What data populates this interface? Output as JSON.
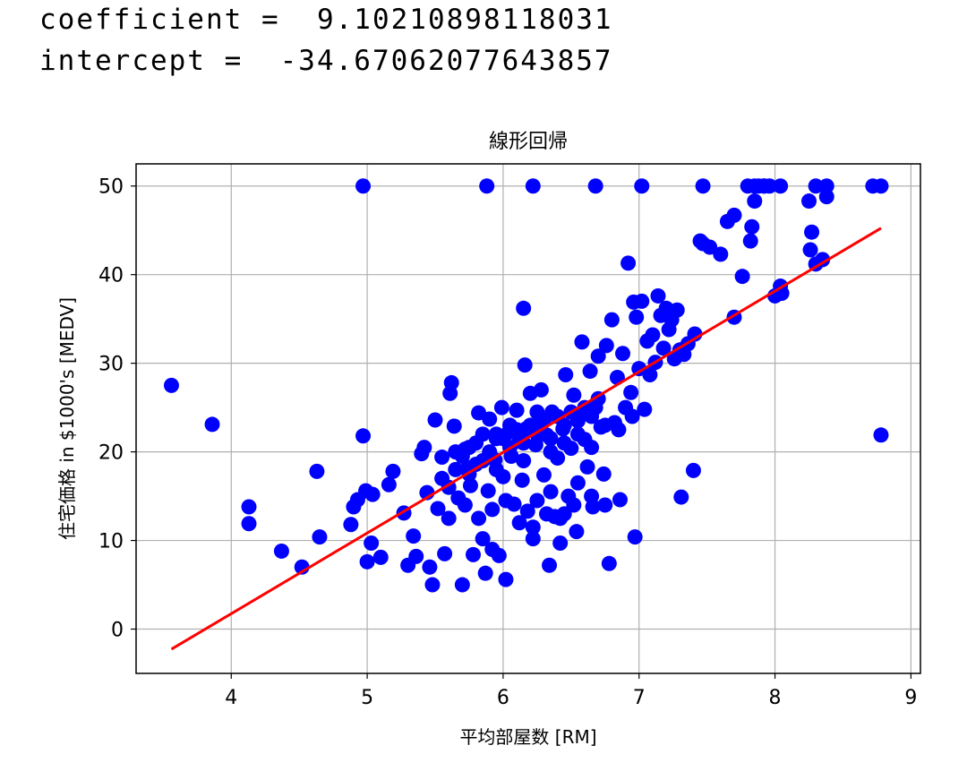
{
  "output": {
    "coef_label": "coefficient = ",
    "coef_value": "9.10210898118031",
    "intercept_label": "intercept = ",
    "intercept_value": "-34.67062077643857"
  },
  "chart_data": {
    "type": "scatter",
    "title": "線形回帰",
    "xlabel": "平均部屋数 [RM]",
    "ylabel": "住宅価格 in $1000's [MEDV]",
    "xlim": [
      3.3,
      9.07
    ],
    "ylim": [
      -5,
      52.5
    ],
    "xticks": [
      4,
      5,
      6,
      7,
      8,
      9
    ],
    "yticks": [
      0,
      10,
      20,
      30,
      40,
      50
    ],
    "grid": true,
    "point_color": "#0000ff",
    "line_color": "#ff0000",
    "regression_line": {
      "slope": 9.10210898118031,
      "intercept": -34.67062077643857,
      "x_range": [
        3.56,
        8.78
      ]
    },
    "points": [
      [
        4.97,
        50
      ],
      [
        5.88,
        50
      ],
      [
        6.22,
        50
      ],
      [
        6.68,
        50
      ],
      [
        7.02,
        50
      ],
      [
        7.47,
        50
      ],
      [
        7.8,
        50
      ],
      [
        7.85,
        50
      ],
      [
        7.88,
        50
      ],
      [
        7.92,
        50
      ],
      [
        7.96,
        50
      ],
      [
        8.04,
        50
      ],
      [
        8.3,
        50
      ],
      [
        8.38,
        50
      ],
      [
        8.72,
        50
      ],
      [
        8.78,
        50
      ],
      [
        3.56,
        27.5
      ],
      [
        3.86,
        23.1
      ],
      [
        4.13,
        13.8
      ],
      [
        4.13,
        11.9
      ],
      [
        4.37,
        8.8
      ],
      [
        4.52,
        7.0
      ],
      [
        4.63,
        17.8
      ],
      [
        4.65,
        10.4
      ],
      [
        4.88,
        11.8
      ],
      [
        4.9,
        13.8
      ],
      [
        4.93,
        14.6
      ],
      [
        4.97,
        21.8
      ],
      [
        4.99,
        15.6
      ],
      [
        5.0,
        7.6
      ],
      [
        5.03,
        9.7
      ],
      [
        5.04,
        15.2
      ],
      [
        5.1,
        8.1
      ],
      [
        5.16,
        16.3
      ],
      [
        5.19,
        17.8
      ],
      [
        5.27,
        13.1
      ],
      [
        5.3,
        7.2
      ],
      [
        5.34,
        10.5
      ],
      [
        5.36,
        8.2
      ],
      [
        5.4,
        19.8
      ],
      [
        5.42,
        20.5
      ],
      [
        5.44,
        15.4
      ],
      [
        5.46,
        7.0
      ],
      [
        5.48,
        5.0
      ],
      [
        5.5,
        23.6
      ],
      [
        5.52,
        13.6
      ],
      [
        5.55,
        19.4
      ],
      [
        5.57,
        8.5
      ],
      [
        5.6,
        12.5
      ],
      [
        5.61,
        26.6
      ],
      [
        5.62,
        27.8
      ],
      [
        5.64,
        22.9
      ],
      [
        5.67,
        14.8
      ],
      [
        5.7,
        5.0
      ],
      [
        5.72,
        20.3
      ],
      [
        5.74,
        18.2
      ],
      [
        5.76,
        16.2
      ],
      [
        5.78,
        8.4
      ],
      [
        5.8,
        18.6
      ],
      [
        5.82,
        24.4
      ],
      [
        5.85,
        10.2
      ],
      [
        5.87,
        6.3
      ],
      [
        5.89,
        15.6
      ],
      [
        5.9,
        23.7
      ],
      [
        5.92,
        9.0
      ],
      [
        5.94,
        19.1
      ],
      [
        5.95,
        21.5
      ],
      [
        5.97,
        8.3
      ],
      [
        5.99,
        25.0
      ],
      [
        6.0,
        17.2
      ],
      [
        6.02,
        5.6
      ],
      [
        6.04,
        22.2
      ],
      [
        6.06,
        19.5
      ],
      [
        6.08,
        14.1
      ],
      [
        6.1,
        24.7
      ],
      [
        6.12,
        21.2
      ],
      [
        6.14,
        16.8
      ],
      [
        6.15,
        36.2
      ],
      [
        6.16,
        29.8
      ],
      [
        6.17,
        22.6
      ],
      [
        6.18,
        13.3
      ],
      [
        6.2,
        26.6
      ],
      [
        6.22,
        10.2
      ],
      [
        6.24,
        20.8
      ],
      [
        6.26,
        23.1
      ],
      [
        6.28,
        27.0
      ],
      [
        6.3,
        17.4
      ],
      [
        6.32,
        21.9
      ],
      [
        6.34,
        7.2
      ],
      [
        6.36,
        24.5
      ],
      [
        6.38,
        12.7
      ],
      [
        6.4,
        19.3
      ],
      [
        6.42,
        9.7
      ],
      [
        6.44,
        22.6
      ],
      [
        6.46,
        28.7
      ],
      [
        6.48,
        15.0
      ],
      [
        6.5,
        20.4
      ],
      [
        6.52,
        26.4
      ],
      [
        6.54,
        11.0
      ],
      [
        6.56,
        24.2
      ],
      [
        6.58,
        32.4
      ],
      [
        6.6,
        21.4
      ],
      [
        6.62,
        18.3
      ],
      [
        6.64,
        29.1
      ],
      [
        6.66,
        13.8
      ],
      [
        6.68,
        25.0
      ],
      [
        6.7,
        30.8
      ],
      [
        6.72,
        22.8
      ],
      [
        6.74,
        17.5
      ],
      [
        6.76,
        32.0
      ],
      [
        6.78,
        7.4
      ],
      [
        6.8,
        34.9
      ],
      [
        6.82,
        23.3
      ],
      [
        6.84,
        28.4
      ],
      [
        6.86,
        14.6
      ],
      [
        6.88,
        31.1
      ],
      [
        6.9,
        25.0
      ],
      [
        6.92,
        41.3
      ],
      [
        6.94,
        26.7
      ],
      [
        6.96,
        36.9
      ],
      [
        6.97,
        10.4
      ],
      [
        6.98,
        35.2
      ],
      [
        7.0,
        29.4
      ],
      [
        7.02,
        37.0
      ],
      [
        7.04,
        24.8
      ],
      [
        7.06,
        32.5
      ],
      [
        7.08,
        28.7
      ],
      [
        7.1,
        33.2
      ],
      [
        7.12,
        30.1
      ],
      [
        7.14,
        37.6
      ],
      [
        7.16,
        35.4
      ],
      [
        7.18,
        31.7
      ],
      [
        7.2,
        36.2
      ],
      [
        7.22,
        33.8
      ],
      [
        7.24,
        34.9
      ],
      [
        7.26,
        30.5
      ],
      [
        7.28,
        36.0
      ],
      [
        7.3,
        31.5
      ],
      [
        7.31,
        14.9
      ],
      [
        7.33,
        31.0
      ],
      [
        7.36,
        32.2
      ],
      [
        7.4,
        17.9
      ],
      [
        7.41,
        33.3
      ],
      [
        7.45,
        43.8
      ],
      [
        7.47,
        43.5
      ],
      [
        7.52,
        43.1
      ],
      [
        7.6,
        42.3
      ],
      [
        7.65,
        46.0
      ],
      [
        7.7,
        35.2
      ],
      [
        7.7,
        46.7
      ],
      [
        7.76,
        39.8
      ],
      [
        7.82,
        43.8
      ],
      [
        7.83,
        45.4
      ],
      [
        7.85,
        48.3
      ],
      [
        7.92,
        50.0
      ],
      [
        8.0,
        37.6
      ],
      [
        8.04,
        38.7
      ],
      [
        8.05,
        37.9
      ],
      [
        8.25,
        48.3
      ],
      [
        8.26,
        42.8
      ],
      [
        8.27,
        44.8
      ],
      [
        8.3,
        41.2
      ],
      [
        8.35,
        41.7
      ],
      [
        8.38,
        48.8
      ],
      [
        8.78,
        21.9
      ],
      [
        5.65,
        18.0
      ],
      [
        5.7,
        19.5
      ],
      [
        5.75,
        20.5
      ],
      [
        5.8,
        21.0
      ],
      [
        5.85,
        19.0
      ],
      [
        5.9,
        20.0
      ],
      [
        5.95,
        22.0
      ],
      [
        6.0,
        21.5
      ],
      [
        6.05,
        20.5
      ],
      [
        6.1,
        22.5
      ],
      [
        6.15,
        21.0
      ],
      [
        6.2,
        23.0
      ],
      [
        6.25,
        22.0
      ],
      [
        6.3,
        23.5
      ],
      [
        6.35,
        21.5
      ],
      [
        6.4,
        24.0
      ],
      [
        6.45,
        23.0
      ],
      [
        6.5,
        24.5
      ],
      [
        6.55,
        23.5
      ],
      [
        6.6,
        25.0
      ],
      [
        6.65,
        24.0
      ],
      [
        6.7,
        26.0
      ],
      [
        5.55,
        17.0
      ],
      [
        5.6,
        16.0
      ],
      [
        5.65,
        20.0
      ],
      [
        5.75,
        17.5
      ],
      [
        5.85,
        22.0
      ],
      [
        5.95,
        18.0
      ],
      [
        6.05,
        23.0
      ],
      [
        6.15,
        19.0
      ],
      [
        6.25,
        24.5
      ],
      [
        6.35,
        20.0
      ],
      [
        6.45,
        21.0
      ],
      [
        6.55,
        22.0
      ],
      [
        6.65,
        20.5
      ],
      [
        6.75,
        23.0
      ],
      [
        6.85,
        22.5
      ],
      [
        6.95,
        24.0
      ],
      [
        6.25,
        14.5
      ],
      [
        6.35,
        15.5
      ],
      [
        6.45,
        13.0
      ],
      [
        6.55,
        16.5
      ],
      [
        6.65,
        15.0
      ],
      [
        6.75,
        14.0
      ],
      [
        5.72,
        14.0
      ],
      [
        5.82,
        12.5
      ],
      [
        5.92,
        13.5
      ],
      [
        6.02,
        14.5
      ],
      [
        6.12,
        12.0
      ],
      [
        6.22,
        11.5
      ],
      [
        6.32,
        13.0
      ],
      [
        6.42,
        12.5
      ],
      [
        6.52,
        14.0
      ]
    ]
  }
}
